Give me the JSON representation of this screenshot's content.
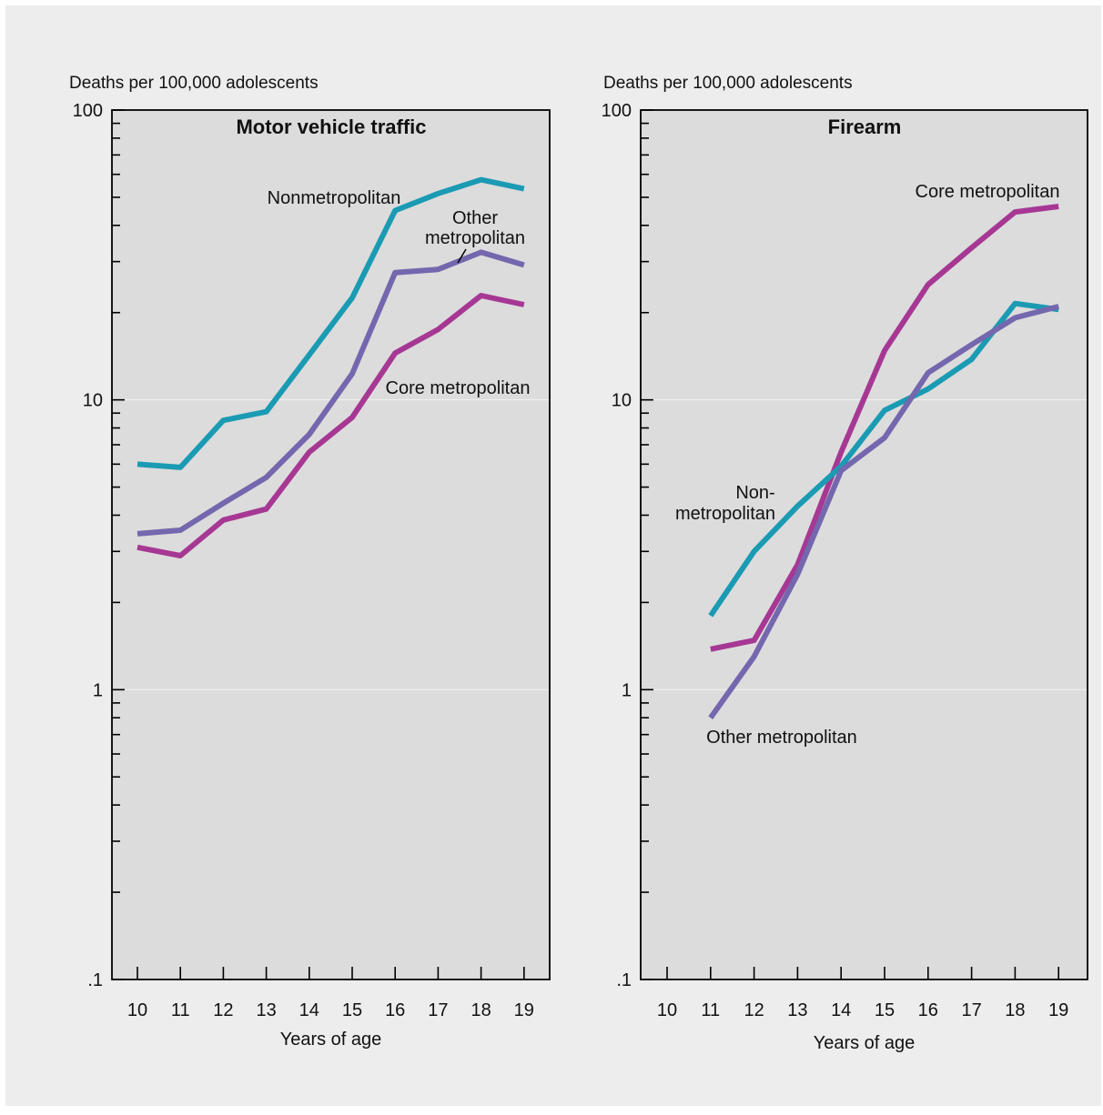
{
  "chart_data": [
    {
      "type": "line",
      "title": "Motor vehicle traffic",
      "ylabel": "Deaths per 100,000 adolescents",
      "xlabel": "Years of age",
      "yscale": "log",
      "ylim": [
        0.1,
        100
      ],
      "ytick_labels": [
        {
          "value": 100,
          "label": "100"
        },
        {
          "value": 10,
          "label": "10"
        },
        {
          "value": 1,
          "label": "1"
        },
        {
          "value": 0.1,
          "label": ".1"
        }
      ],
      "x": [
        10,
        11,
        12,
        13,
        14,
        15,
        16,
        17,
        18,
        19
      ],
      "xtick_labels": [
        "10",
        "11",
        "12",
        "13",
        "14",
        "15",
        "16",
        "17",
        "18",
        "19"
      ],
      "grid": true,
      "series": [
        {
          "name": "Nonmetropolitan",
          "label_text": [
            "Nonmetropolitan"
          ],
          "color": "#1a9bb3",
          "x": [
            10,
            11,
            12,
            13,
            14,
            15,
            16,
            17,
            18,
            19
          ],
          "values": [
            6.0,
            5.85,
            8.5,
            9.1,
            14.3,
            22.5,
            45.0,
            51.5,
            57.5,
            53.5
          ]
        },
        {
          "name": "Other metropolitan",
          "label_text": [
            "Other",
            "metropolitan"
          ],
          "color": "#7467ae",
          "x": [
            10,
            11,
            12,
            13,
            14,
            15,
            16,
            17,
            18,
            19
          ],
          "values": [
            3.45,
            3.55,
            4.4,
            5.4,
            7.6,
            12.3,
            27.5,
            28.2,
            32.3,
            29.2
          ]
        },
        {
          "name": "Core metropolitan",
          "label_text": [
            "Core metropolitan"
          ],
          "color": "#a63894",
          "x": [
            10,
            11,
            12,
            13,
            14,
            15,
            16,
            17,
            18,
            19
          ],
          "values": [
            3.1,
            2.9,
            3.85,
            4.2,
            6.6,
            8.7,
            14.5,
            17.5,
            22.9,
            21.3
          ]
        }
      ]
    },
    {
      "type": "line",
      "title": "Firearm",
      "ylabel": "Deaths per 100,000 adolescents",
      "xlabel": "Years of age",
      "yscale": "log",
      "ylim": [
        0.1,
        100
      ],
      "ytick_labels": [
        {
          "value": 100,
          "label": "100"
        },
        {
          "value": 10,
          "label": "10"
        },
        {
          "value": 1,
          "label": "1"
        },
        {
          "value": 0.1,
          "label": ".1"
        }
      ],
      "x": [
        10,
        11,
        12,
        13,
        14,
        15,
        16,
        17,
        18,
        19
      ],
      "xtick_labels": [
        "10",
        "11",
        "12",
        "13",
        "14",
        "15",
        "16",
        "17",
        "18",
        "19"
      ],
      "grid": true,
      "series": [
        {
          "name": "Core metropolitan",
          "label_text": [
            "Core metropolitan"
          ],
          "color": "#a63894",
          "x": [
            11,
            12,
            13,
            14,
            15,
            16,
            17,
            18,
            19
          ],
          "values": [
            1.38,
            1.48,
            2.7,
            6.6,
            14.8,
            25.0,
            33.5,
            44.5,
            46.5
          ]
        },
        {
          "name": "Nonmetropolitan",
          "label_text": [
            "Non-",
            "metropolitan"
          ],
          "color": "#1a9bb3",
          "x": [
            11,
            12,
            13,
            14,
            15,
            16,
            17,
            18,
            19
          ],
          "values": [
            1.8,
            3.0,
            4.3,
            5.9,
            9.2,
            10.9,
            13.8,
            21.5,
            20.5
          ]
        },
        {
          "name": "Other metropolitan",
          "label_text": [
            "Other metropolitan"
          ],
          "color": "#7467ae",
          "x": [
            11,
            12,
            13,
            14,
            15,
            16,
            17,
            18,
            19
          ],
          "values": [
            0.8,
            1.3,
            2.5,
            5.7,
            7.4,
            12.4,
            15.5,
            19.2,
            21.0
          ]
        }
      ]
    }
  ]
}
